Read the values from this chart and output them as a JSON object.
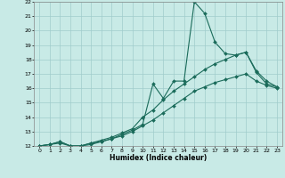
{
  "xlabel": "Humidex (Indice chaleur)",
  "xlim": [
    -0.5,
    23.5
  ],
  "ylim": [
    12,
    22
  ],
  "xticks": [
    0,
    1,
    2,
    3,
    4,
    5,
    6,
    7,
    8,
    9,
    10,
    11,
    12,
    13,
    14,
    15,
    16,
    17,
    18,
    19,
    20,
    21,
    22,
    23
  ],
  "yticks": [
    12,
    13,
    14,
    15,
    16,
    17,
    18,
    19,
    20,
    21,
    22
  ],
  "bg_color": "#c8eae6",
  "line_color": "#1a6b5a",
  "grid_color": "#a0cccc",
  "series1_x": [
    0,
    1,
    2,
    3,
    4,
    5,
    6,
    7,
    8,
    9,
    10,
    11,
    12,
    13,
    14,
    15,
    16,
    17,
    18,
    19,
    20,
    21,
    22,
    23
  ],
  "series1_y": [
    12.0,
    12.1,
    12.3,
    12.0,
    12.0,
    12.2,
    12.3,
    12.5,
    12.8,
    13.1,
    13.5,
    16.3,
    15.3,
    16.5,
    16.5,
    22.0,
    21.2,
    19.2,
    18.4,
    18.3,
    18.5,
    17.1,
    16.3,
    16.1
  ],
  "series2_x": [
    0,
    1,
    2,
    3,
    4,
    5,
    6,
    7,
    8,
    9,
    10,
    11,
    12,
    13,
    14,
    15,
    16,
    17,
    18,
    19,
    20,
    21,
    22,
    23
  ],
  "series2_y": [
    12.0,
    12.1,
    12.3,
    12.0,
    12.0,
    12.2,
    12.4,
    12.6,
    12.9,
    13.2,
    14.0,
    14.5,
    15.2,
    15.8,
    16.3,
    16.8,
    17.3,
    17.7,
    18.0,
    18.3,
    18.5,
    17.2,
    16.5,
    16.1
  ],
  "series3_x": [
    0,
    1,
    2,
    3,
    4,
    5,
    6,
    7,
    8,
    9,
    10,
    11,
    12,
    13,
    14,
    15,
    16,
    17,
    18,
    19,
    20,
    21,
    22,
    23
  ],
  "series3_y": [
    12.0,
    12.1,
    12.2,
    12.0,
    12.0,
    12.1,
    12.3,
    12.5,
    12.7,
    13.0,
    13.4,
    13.8,
    14.3,
    14.8,
    15.3,
    15.8,
    16.1,
    16.4,
    16.6,
    16.8,
    17.0,
    16.5,
    16.2,
    16.0
  ]
}
